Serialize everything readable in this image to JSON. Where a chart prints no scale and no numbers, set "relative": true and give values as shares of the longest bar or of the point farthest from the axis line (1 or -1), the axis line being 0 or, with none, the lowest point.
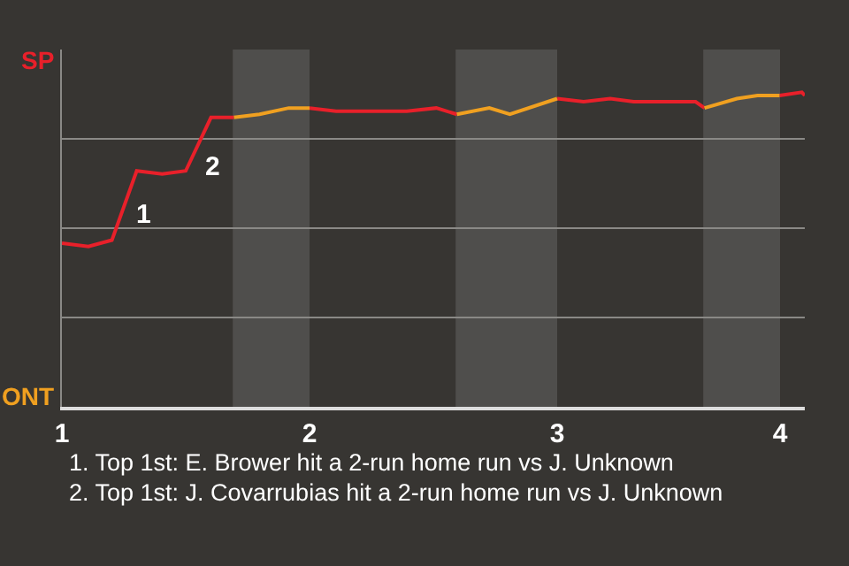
{
  "chart_data": {
    "type": "line",
    "relative": true,
    "x": [
      1.0,
      1.107,
      1.202,
      1.302,
      1.405,
      1.5,
      1.602,
      1.695,
      1.798,
      1.916,
      2.0,
      2.107,
      2.202,
      2.298,
      2.393,
      2.512,
      2.595,
      2.726,
      2.809,
      3.0,
      3.107,
      3.214,
      3.309,
      3.559,
      3.595,
      3.726,
      3.809,
      3.898,
      3.988,
      4.0
    ],
    "series": [
      {
        "color": "#e8202a",
        "values": [
          0.52,
          0.51,
          0.53,
          0.75,
          0.74,
          0.75,
          0.92,
          0.92,
          null,
          null,
          0.95,
          0.94,
          0.94,
          0.94,
          0.94,
          0.95,
          0.93,
          null,
          null,
          0.98,
          0.97,
          0.98,
          0.97,
          0.97,
          0.95,
          null,
          null,
          0.99,
          1,
          0.99
        ]
      },
      {
        "color": "#f0a020",
        "values": [
          null,
          null,
          null,
          null,
          null,
          null,
          null,
          0.92,
          0.93,
          0.95,
          0.95,
          null,
          null,
          null,
          null,
          null,
          0.93,
          0.95,
          0.93,
          0.98,
          null,
          null,
          null,
          null,
          0.95,
          0.98,
          0.99,
          0.99,
          null,
          null
        ]
      }
    ],
    "xlim": [
      1,
      4
    ],
    "xticks": [
      1,
      2,
      3,
      {
        "value": 3.9,
        "label": "4"
      }
    ],
    "bands": [
      {
        "axis": "x",
        "from": 1.69,
        "to": 2.0,
        "color": "#4f4e4c"
      },
      {
        "axis": "x",
        "from": 2.59,
        "to": 3.0,
        "color": "#4f4e4c"
      },
      {
        "axis": "x",
        "from": 3.59,
        "to": 3.9,
        "color": "#4f4e4c"
      }
    ],
    "annotations": [
      "SP",
      "ONT",
      {
        "text": "1",
        "x": 1.27,
        "y": 0.68
      },
      {
        "text": "2",
        "x": 1.55,
        "y": 0.83
      },
      "1. Top 1st: E. Brower hit a 2-run home run vs J. Unknown",
      "2. Top 1st: J. Covarrubias hit a 2-run home run vs J. Unknown"
    ],
    "grid": "y",
    "marker": "none"
  }
}
